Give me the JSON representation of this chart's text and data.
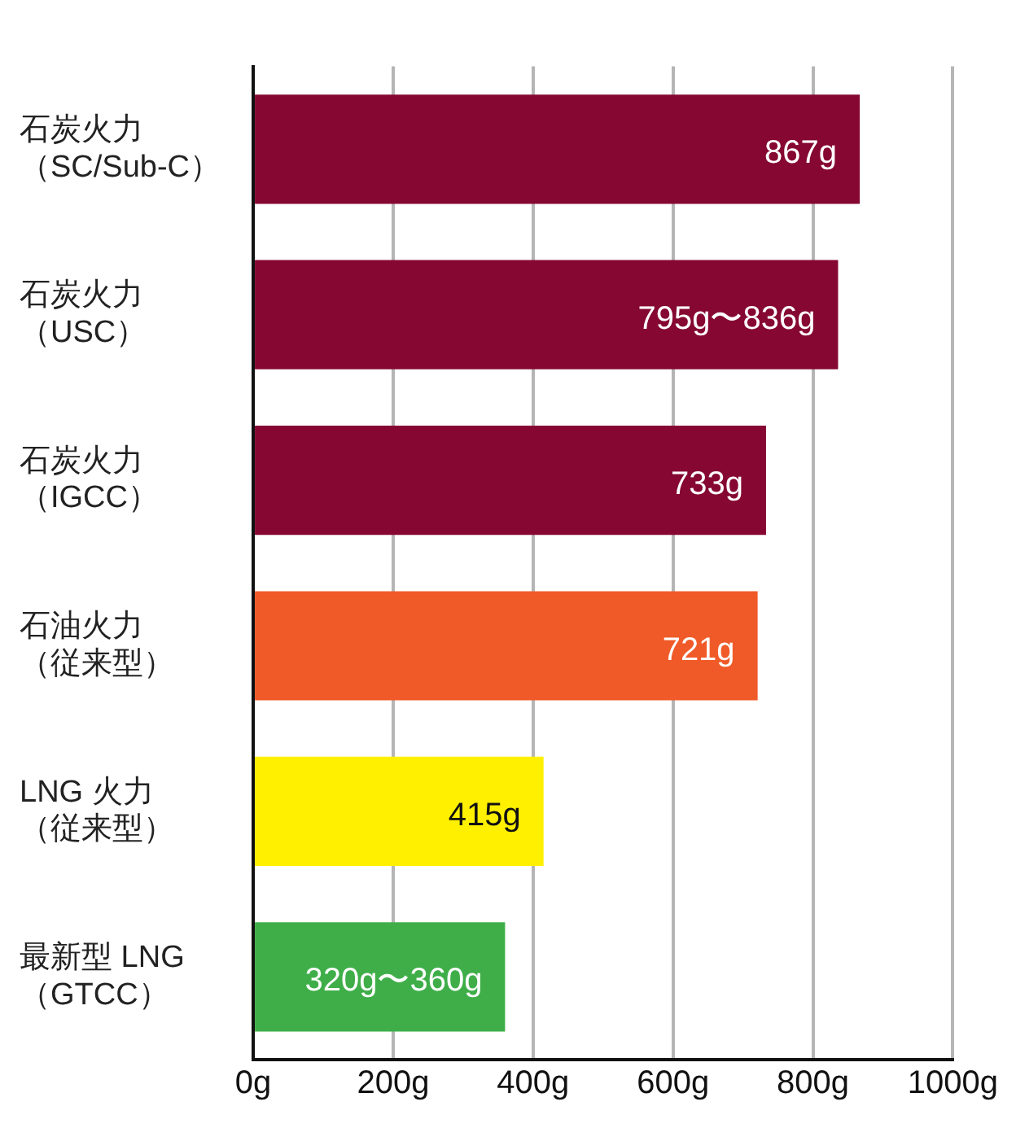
{
  "chart_data": {
    "type": "bar",
    "orientation": "horizontal",
    "categories": [
      "石炭火力（SC/Sub-C）",
      "石炭火力（USC）",
      "石炭火力（IGCC）",
      "石油火力（従来型）",
      "LNG 火力（従来型）",
      "最新型 LNG（GTCC）"
    ],
    "values": [
      867,
      836,
      733,
      721,
      415,
      360
    ],
    "value_labels": [
      "867g",
      "795g〜836g",
      "733g",
      "721g",
      "415g",
      "320g〜360g"
    ],
    "colors": [
      "#850732",
      "#850732",
      "#850732",
      "#f05a28",
      "#fff000",
      "#3fae49"
    ],
    "xlim": [
      0,
      1000
    ],
    "xticks": [
      {
        "value": 0,
        "label": "0g"
      },
      {
        "value": 200,
        "label": "200g"
      },
      {
        "value": 400,
        "label": "400g"
      },
      {
        "value": 600,
        "label": "600g"
      },
      {
        "value": 800,
        "label": "800g"
      },
      {
        "value": 1000,
        "label": "1000g"
      }
    ],
    "grid": "x"
  }
}
